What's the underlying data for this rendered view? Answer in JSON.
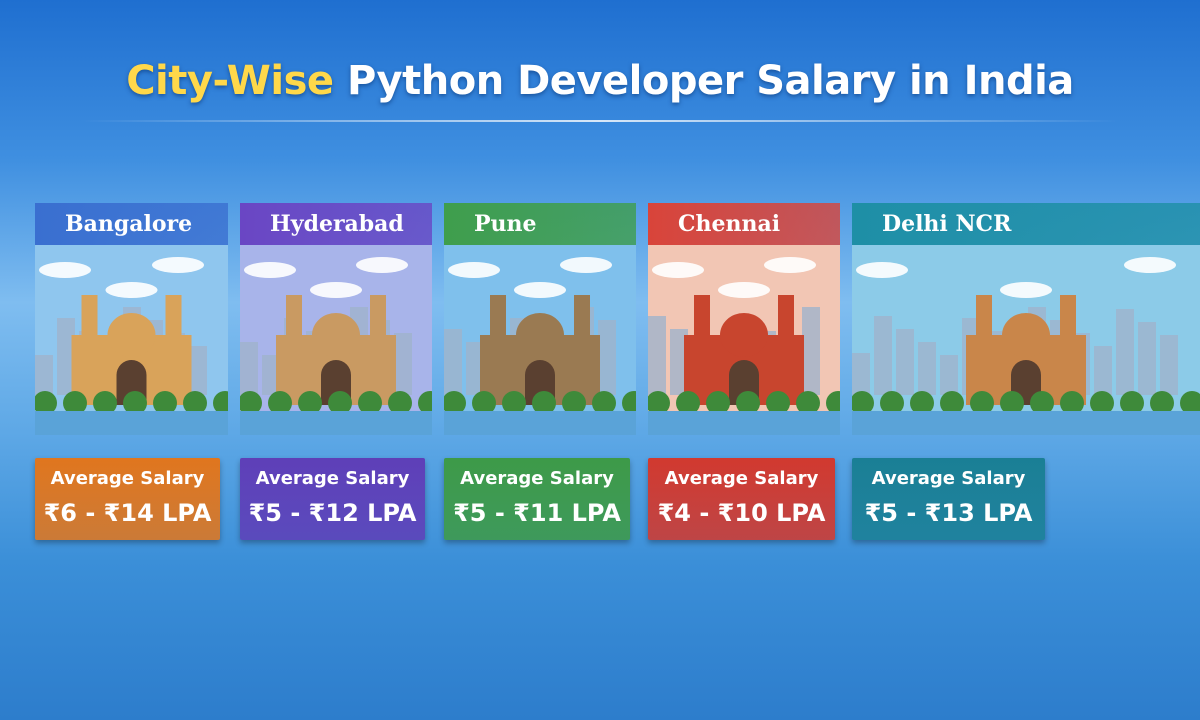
{
  "title": {
    "highlight": "City-Wise",
    "rest": "Python Developer Salary in India"
  },
  "cards": [
    {
      "city": "Bangalore",
      "label": "Average Salary",
      "salary": "₹6 - ₹14 LPA"
    },
    {
      "city": "Hyderabad",
      "label": "Average Salary",
      "salary": "₹5 - ₹12 LPA"
    },
    {
      "city": "Pune",
      "label": "Average Salary",
      "salary": "₹5 - ₹11 LPA"
    },
    {
      "city": "Chennai",
      "label": "Average Salary",
      "salary": "₹4 - ₹10 LPA"
    },
    {
      "city": "Delhi NCR",
      "label": "Average Salary",
      "salary": "₹5 - ₹13 LPA"
    }
  ]
}
